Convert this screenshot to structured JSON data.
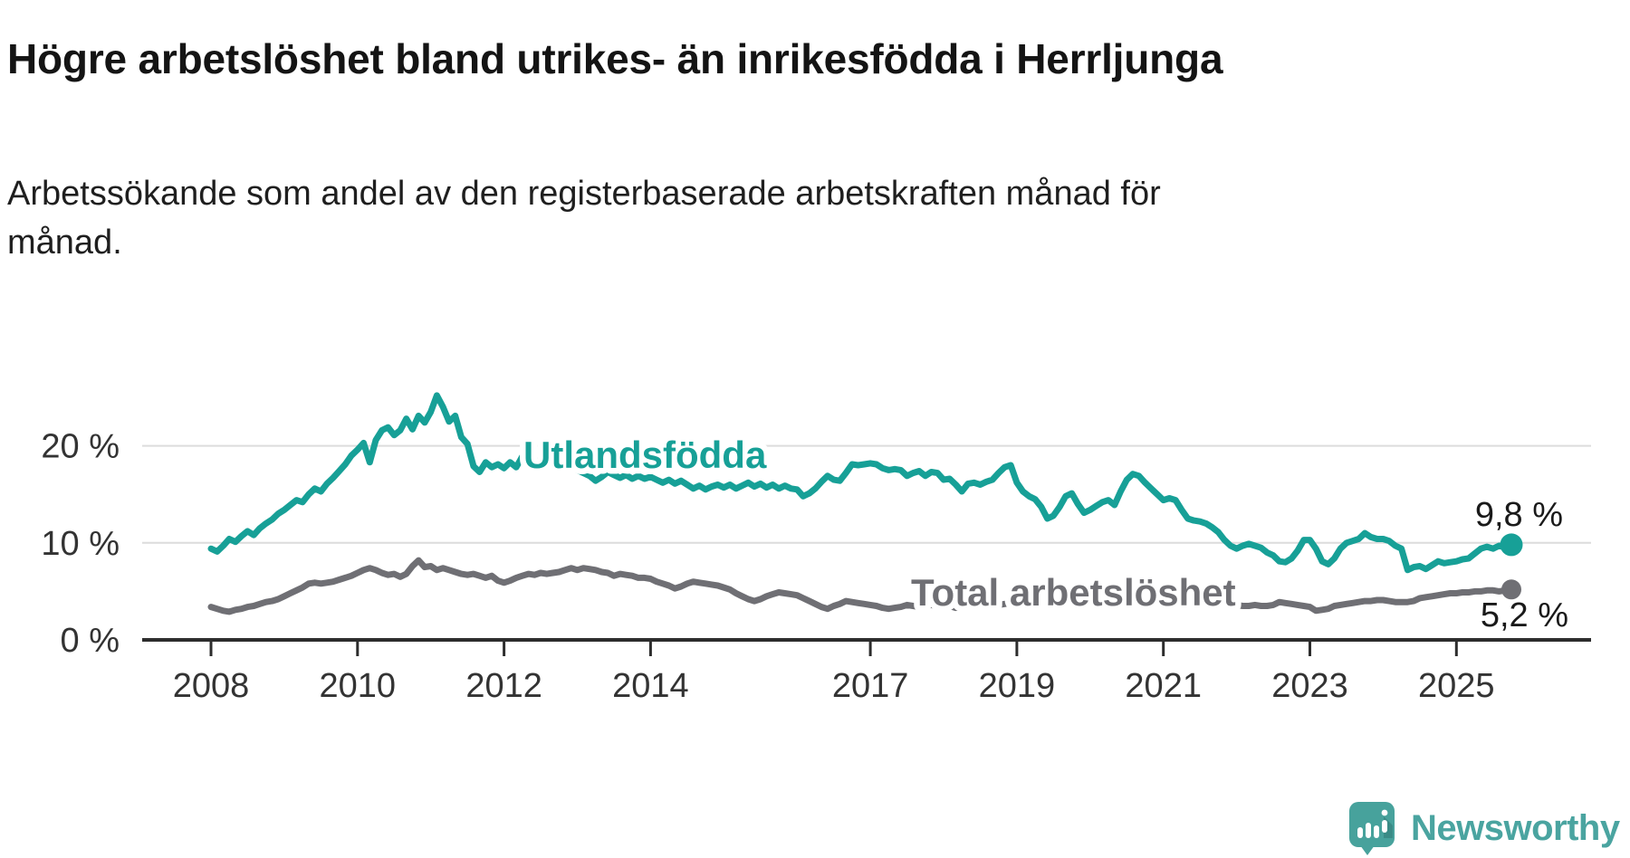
{
  "header": {
    "title": "Högre arbetslöshet bland utrikes- än inrikesfödda i Herrljunga",
    "subtitle": "Arbetssökande som andel av den registerbaserade arbetskraften månad för månad."
  },
  "footer": {
    "brand": "Newsworthy"
  },
  "colors": {
    "teal": "#17a097",
    "gray": "#6f6f74",
    "grid": "#dcdcdc",
    "axis": "#2d2d2d",
    "tick_text": "#333333",
    "value_text": "#1a1a1a",
    "logo": "#47a29c"
  },
  "chart_data": {
    "type": "line",
    "title": "Högre arbetslöshet bland utrikes- än inrikesfödda i Herrljunga",
    "subtitle": "Arbetssökande som andel av den registerbaserade arbetskraften månad för månad.",
    "x_start": "2008-01",
    "x_end": "2025-10",
    "frequency": "monthly",
    "y_unit": "%",
    "ylim": [
      0,
      27.5
    ],
    "grid": "horizontal",
    "legend_position": "inline-labels",
    "x_ticks": [
      2008,
      2010,
      2012,
      2014,
      2017,
      2019,
      2021,
      2023,
      2025
    ],
    "y_ticks": [
      {
        "value": 0,
        "label": "0 %"
      },
      {
        "value": 10,
        "label": "10 %"
      },
      {
        "value": 20,
        "label": "20 %"
      }
    ],
    "series": [
      {
        "name": "Utlandsfödda",
        "color": "#17a097",
        "end_value": 9.8,
        "end_label": "9,8 %",
        "values": [
          9.4,
          9.1,
          9.7,
          10.4,
          10.1,
          10.7,
          11.2,
          10.8,
          11.5,
          12.0,
          12.4,
          13.0,
          13.4,
          13.9,
          14.4,
          14.2,
          15.0,
          15.6,
          15.3,
          16.1,
          16.7,
          17.4,
          18.1,
          19.0,
          19.6,
          20.3,
          18.3,
          20.6,
          21.6,
          21.9,
          21.1,
          21.6,
          22.8,
          21.7,
          23.1,
          22.4,
          23.5,
          25.2,
          24.0,
          22.5,
          23.1,
          20.9,
          20.2,
          17.9,
          17.3,
          18.3,
          17.8,
          18.1,
          17.7,
          18.3,
          17.8,
          18.9,
          18.5,
          18.2,
          18.6,
          18.3,
          18.0,
          17.8,
          17.5,
          17.9,
          17.5,
          17.2,
          16.9,
          16.4,
          16.8,
          17.3,
          17.0,
          16.7,
          17.0,
          16.6,
          16.9,
          16.6,
          16.8,
          16.5,
          16.2,
          16.5,
          16.1,
          16.4,
          16.0,
          15.6,
          15.9,
          15.5,
          15.8,
          16.0,
          15.7,
          16.0,
          15.6,
          15.9,
          16.2,
          15.8,
          16.1,
          15.7,
          16.0,
          15.6,
          15.9,
          15.6,
          15.5,
          14.8,
          15.1,
          15.6,
          16.3,
          16.9,
          16.5,
          16.4,
          17.2,
          18.1,
          18.0,
          18.1,
          18.2,
          18.1,
          17.7,
          17.5,
          17.6,
          17.5,
          16.9,
          17.2,
          17.4,
          16.9,
          17.3,
          17.2,
          16.5,
          16.6,
          16.0,
          15.3,
          16.1,
          16.2,
          16.0,
          16.3,
          16.5,
          17.2,
          17.8,
          18.0,
          16.2,
          15.3,
          14.8,
          14.5,
          13.7,
          12.5,
          12.8,
          13.7,
          14.8,
          15.1,
          14.0,
          13.1,
          13.4,
          13.8,
          14.2,
          14.4,
          13.9,
          15.3,
          16.5,
          17.1,
          16.9,
          16.2,
          15.6,
          15.0,
          14.4,
          14.6,
          14.4,
          13.4,
          12.5,
          12.3,
          12.2,
          12.0,
          11.6,
          11.1,
          10.3,
          9.7,
          9.4,
          9.7,
          9.9,
          9.7,
          9.5,
          9.0,
          8.7,
          8.1,
          8.0,
          8.4,
          9.2,
          10.3,
          10.3,
          9.4,
          8.1,
          7.8,
          8.4,
          9.4,
          10.0,
          10.2,
          10.4,
          11.0,
          10.6,
          10.4,
          10.4,
          10.2,
          9.7,
          9.4,
          7.2,
          7.5,
          7.6,
          7.3,
          7.7,
          8.1,
          7.9,
          8.0,
          8.1,
          8.3,
          8.4,
          8.9,
          9.4,
          9.6,
          9.4,
          9.7,
          9.5,
          9.8
        ]
      },
      {
        "name": "Total arbetslöshet",
        "color": "#6f6f74",
        "end_value": 5.2,
        "end_label": "5,2 %",
        "values": [
          3.4,
          3.2,
          3.0,
          2.9,
          3.1,
          3.2,
          3.4,
          3.5,
          3.7,
          3.9,
          4.0,
          4.2,
          4.5,
          4.8,
          5.1,
          5.4,
          5.8,
          5.9,
          5.8,
          5.9,
          6.0,
          6.2,
          6.4,
          6.6,
          6.9,
          7.2,
          7.4,
          7.2,
          6.9,
          6.7,
          6.8,
          6.5,
          6.8,
          7.6,
          8.2,
          7.5,
          7.6,
          7.2,
          7.4,
          7.2,
          7.0,
          6.8,
          6.7,
          6.8,
          6.6,
          6.4,
          6.6,
          6.1,
          5.9,
          6.1,
          6.4,
          6.6,
          6.8,
          6.7,
          6.9,
          6.8,
          6.9,
          7.0,
          7.2,
          7.4,
          7.2,
          7.4,
          7.3,
          7.2,
          7.0,
          6.9,
          6.6,
          6.8,
          6.7,
          6.6,
          6.4,
          6.4,
          6.3,
          6.0,
          5.8,
          5.6,
          5.3,
          5.5,
          5.8,
          6.0,
          5.9,
          5.8,
          5.7,
          5.6,
          5.4,
          5.2,
          4.8,
          4.5,
          4.2,
          4.0,
          4.2,
          4.5,
          4.7,
          4.9,
          4.8,
          4.7,
          4.6,
          4.3,
          4.0,
          3.7,
          3.4,
          3.2,
          3.5,
          3.7,
          4.0,
          3.9,
          3.8,
          3.7,
          3.6,
          3.5,
          3.3,
          3.2,
          3.3,
          3.4,
          3.6,
          3.5,
          3.4,
          3.5,
          3.6,
          3.5,
          3.4,
          3.5,
          3.3,
          3.4,
          3.5,
          3.6,
          3.5,
          3.6,
          3.7,
          3.6,
          3.7,
          3.8,
          3.7,
          3.8,
          3.9,
          3.8,
          3.9,
          4.0,
          4.1,
          4.0,
          4.1,
          4.2,
          4.1,
          4.2,
          4.3,
          4.5,
          4.7,
          5.0,
          5.2,
          5.1,
          5.0,
          4.9,
          4.8,
          4.7,
          4.6,
          4.5,
          4.4,
          4.3,
          4.2,
          4.1,
          4.0,
          3.9,
          3.9,
          3.8,
          3.8,
          3.7,
          3.7,
          3.6,
          3.6,
          3.5,
          3.5,
          3.6,
          3.5,
          3.5,
          3.6,
          3.9,
          3.8,
          3.7,
          3.6,
          3.5,
          3.4,
          3.0,
          3.1,
          3.2,
          3.5,
          3.6,
          3.7,
          3.8,
          3.9,
          4.0,
          4.0,
          4.1,
          4.1,
          4.0,
          3.9,
          3.9,
          3.9,
          4.0,
          4.3,
          4.4,
          4.5,
          4.6,
          4.7,
          4.8,
          4.8,
          4.9,
          4.9,
          5.0,
          5.0,
          5.1,
          5.1,
          5.0,
          5.1,
          5.2
        ]
      }
    ]
  }
}
